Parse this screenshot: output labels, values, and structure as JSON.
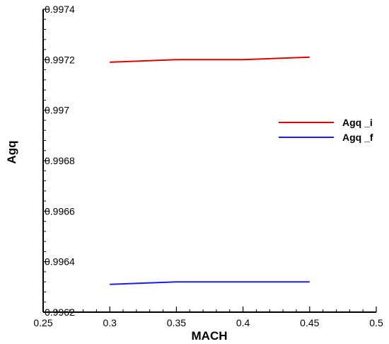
{
  "chart_data": {
    "type": "line",
    "xlabel": "MACH",
    "ylabel": "Agq",
    "xlim": [
      0.25,
      0.5
    ],
    "ylim": [
      0.9962,
      0.9974
    ],
    "x_ticks": [
      0.25,
      0.3,
      0.35,
      0.4,
      0.45,
      0.5
    ],
    "x_tick_labels": [
      "0.25",
      "0.3",
      "0.35",
      "0.4",
      "0.45",
      "0.5"
    ],
    "y_ticks": [
      0.9962,
      0.9964,
      0.9966,
      0.9968,
      0.997,
      0.9972,
      0.9974
    ],
    "y_tick_labels": [
      "0.9962",
      "0.9964",
      "0.9966",
      "0.9968",
      "0.997",
      "0.9972",
      "0.9974"
    ],
    "grid": false,
    "legend_position": "right",
    "x": [
      0.3,
      0.35,
      0.4,
      0.45
    ],
    "series": [
      {
        "name": "Agq _i",
        "color": "#e00000",
        "values": [
          0.99719,
          0.9972,
          0.9972,
          0.99721
        ]
      },
      {
        "name": "Agq _f",
        "color": "#1a1aff",
        "values": [
          0.99631,
          0.99632,
          0.99632,
          0.99632
        ]
      }
    ]
  }
}
